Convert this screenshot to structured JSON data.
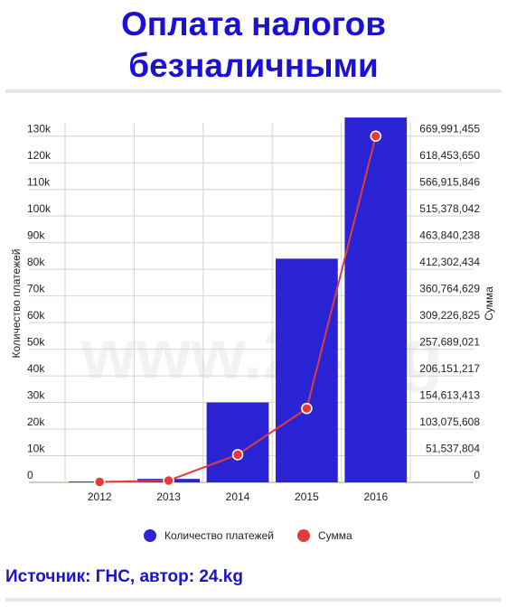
{
  "header": {
    "title": "Оплата налогов безналичными"
  },
  "watermark": "www.24.kg",
  "source": "Источник: ГНС, автор: 24.kg",
  "colors": {
    "bar": "#2a24d4",
    "line": "#e03c3c",
    "title": "#1a10d6"
  },
  "chart_data": {
    "type": "bar",
    "categories": [
      "2012",
      "2013",
      "2014",
      "2015",
      "2016"
    ],
    "series": [
      {
        "name": "Количество платежей",
        "type": "bar",
        "axis": "left",
        "values": [
          300,
          1300,
          30000,
          84000,
          137000
        ]
      },
      {
        "name": "Сумма",
        "type": "line",
        "axis": "right",
        "values": [
          800000,
          3500000,
          53500000,
          143000000,
          670000000
        ]
      }
    ],
    "ylabel": "Количество платежей",
    "y2label": "Сумма",
    "ylim": [
      0,
      135000
    ],
    "y2lim": [
      0,
      695760260
    ],
    "yticks": [
      0,
      10000,
      20000,
      30000,
      40000,
      50000,
      60000,
      70000,
      80000,
      90000,
      100000,
      110000,
      120000,
      130000
    ],
    "yticklabels": [
      "0",
      "10k",
      "20k",
      "30k",
      "40k",
      "50k",
      "60k",
      "70k",
      "80k",
      "90k",
      "100k",
      "110k",
      "120k",
      "130k"
    ],
    "y2ticklabels": [
      "0",
      "51,537,804",
      "103,075,608",
      "154,613,413",
      "206,151,217",
      "257,689,021",
      "309,226,825",
      "360,764,629",
      "412,302,434",
      "463,840,238",
      "515,378,042",
      "566,915,846",
      "618,453,650",
      "669,991,455"
    ],
    "legend": [
      "Количество платежей",
      "Сумма"
    ],
    "legend_position": "bottom",
    "grid": true
  }
}
